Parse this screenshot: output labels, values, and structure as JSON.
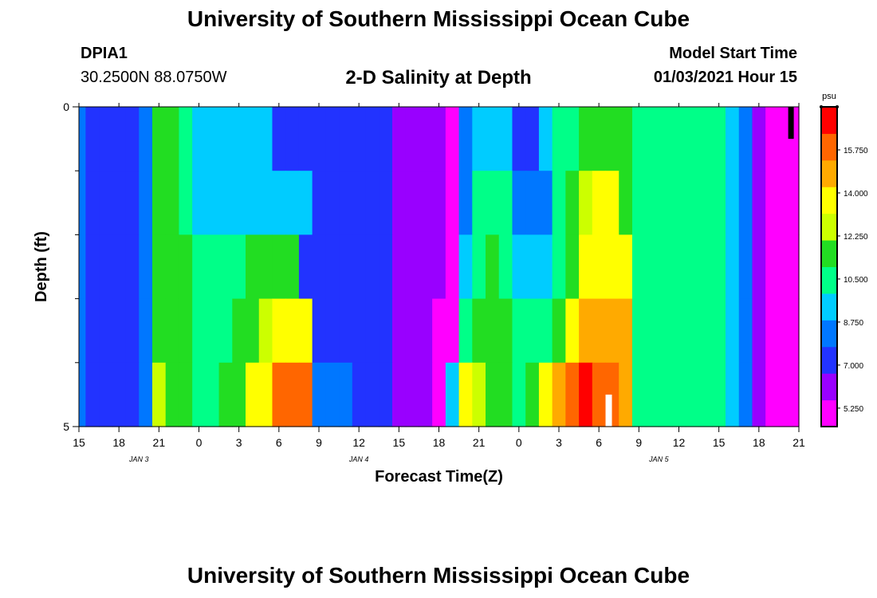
{
  "header": {
    "title": "University of Southern Mississippi Ocean Cube",
    "station_id": "DPIA1",
    "station_location": "30.2500N 88.0750W",
    "model_start_label": "Model Start Time",
    "model_start_value": "01/03/2021 Hour 15"
  },
  "footer": {
    "title": "University of Southern Mississippi Ocean Cube"
  },
  "colors": {
    "scale": [
      "#ff00ff",
      "#9900ff",
      "#2233ff",
      "#0077ff",
      "#00ccff",
      "#00ff88",
      "#22dd22",
      "#ccff00",
      "#ffff00",
      "#ffaa00",
      "#ff6600",
      "#ff0000"
    ]
  },
  "chart_data": {
    "type": "heatmap",
    "title": "2-D Salinity at Depth",
    "xlabel": "Forecast Time(Z)",
    "ylabel": "Depth (ft)",
    "ylim": [
      0,
      5
    ],
    "y_tick_labels": [
      "0",
      "5"
    ],
    "y_minor_ticks": [
      1,
      2,
      3,
      4
    ],
    "x_range_hours": [
      0,
      54
    ],
    "x_ticks": [
      {
        "hour": 0,
        "label": "15"
      },
      {
        "hour": 3,
        "label": "18"
      },
      {
        "hour": 6,
        "label": "21"
      },
      {
        "hour": 9,
        "label": "0"
      },
      {
        "hour": 12,
        "label": "3"
      },
      {
        "hour": 15,
        "label": "6"
      },
      {
        "hour": 18,
        "label": "9"
      },
      {
        "hour": 21,
        "label": "12"
      },
      {
        "hour": 24,
        "label": "15"
      },
      {
        "hour": 27,
        "label": "18"
      },
      {
        "hour": 30,
        "label": "21"
      },
      {
        "hour": 33,
        "label": "0"
      },
      {
        "hour": 36,
        "label": "3"
      },
      {
        "hour": 39,
        "label": "6"
      },
      {
        "hour": 42,
        "label": "9"
      },
      {
        "hour": 45,
        "label": "12"
      },
      {
        "hour": 48,
        "label": "15"
      },
      {
        "hour": 51,
        "label": "18"
      },
      {
        "hour": 54,
        "label": "21"
      }
    ],
    "date_labels": [
      {
        "hour": 4.5,
        "label": "JAN 3"
      },
      {
        "hour": 21,
        "label": "JAN 4"
      },
      {
        "hour": 43.5,
        "label": "JAN 5"
      }
    ],
    "colorbar": {
      "unit": "psu",
      "min": 4.5,
      "max": 17.5,
      "tick_values": [
        5.25,
        7.0,
        8.75,
        10.5,
        12.25,
        14.0,
        15.75
      ],
      "tick_labels": [
        "5.250",
        "7.000",
        "8.750",
        "10.500",
        "12.250",
        "14.000",
        "15.750"
      ]
    },
    "row_depths_ft": [
      0.5,
      1.5,
      2.5,
      3.5,
      4.5
    ],
    "hours": [
      0,
      1,
      2,
      3,
      4,
      5,
      6,
      7,
      8,
      9,
      10,
      11,
      12,
      13,
      14,
      15,
      16,
      17,
      18,
      19,
      20,
      21,
      22,
      23,
      24,
      25,
      26,
      27,
      28,
      29,
      30,
      31,
      32,
      33,
      34,
      35,
      36,
      37,
      38,
      39,
      40,
      41,
      42,
      43,
      44,
      45,
      46,
      47,
      48,
      49,
      50,
      51,
      52,
      53,
      54
    ],
    "salinity_psu": [
      [
        8.0,
        7.6,
        7.4,
        7.3,
        7.2,
        8.5,
        11.5,
        11.0,
        10.3,
        9.6,
        9.0,
        8.9,
        8.9,
        9.2,
        9.6,
        7.4,
        7.2,
        7.2,
        7.4,
        7.6,
        7.7,
        7.5,
        7.2,
        7.1,
        6.4,
        6.0,
        5.8,
        5.7,
        5.5,
        8.0,
        9.0,
        9.5,
        9.8,
        7.2,
        7.2,
        9.0,
        10.0,
        10.5,
        11.0,
        11.5,
        11.5,
        11.5,
        10.5,
        10.5,
        10.5,
        10.5,
        10.5,
        10.5,
        10.0,
        9.0,
        8.0,
        6.0,
        5.0,
        5.0,
        5.0
      ],
      [
        8.0,
        7.6,
        7.4,
        7.3,
        7.2,
        8.5,
        11.8,
        11.2,
        10.6,
        9.5,
        9.2,
        9.2,
        9.2,
        9.2,
        9.2,
        9.2,
        9.2,
        9.2,
        7.6,
        7.5,
        7.4,
        7.3,
        7.0,
        6.9,
        6.3,
        6.0,
        5.8,
        5.6,
        5.5,
        8.5,
        10.0,
        10.5,
        10.0,
        8.5,
        8.5,
        8.5,
        10.0,
        11.0,
        13.0,
        13.3,
        13.3,
        11.5,
        10.5,
        10.5,
        10.5,
        10.5,
        10.5,
        10.5,
        10.0,
        9.0,
        8.0,
        6.0,
        5.0,
        5.0,
        5.0
      ],
      [
        8.0,
        7.6,
        7.4,
        7.3,
        7.2,
        8.5,
        11.8,
        11.5,
        11.0,
        10.5,
        10.3,
        10.5,
        10.8,
        11.0,
        11.5,
        11.8,
        12.0,
        7.4,
        7.4,
        7.4,
        7.3,
        7.1,
        6.9,
        6.8,
        6.2,
        5.9,
        5.8,
        5.6,
        5.5,
        9.0,
        10.8,
        11.0,
        10.5,
        9.8,
        9.5,
        9.2,
        10.3,
        12.0,
        13.5,
        13.8,
        13.8,
        13.8,
        10.5,
        10.5,
        10.5,
        10.5,
        10.5,
        10.5,
        10.0,
        9.0,
        8.0,
        6.0,
        5.0,
        5.0,
        5.0
      ],
      [
        8.0,
        7.6,
        7.4,
        7.3,
        7.2,
        8.5,
        11.6,
        11.5,
        11.3,
        10.5,
        10.5,
        10.8,
        11.3,
        11.8,
        12.5,
        13.8,
        14.0,
        14.0,
        7.6,
        7.4,
        7.3,
        7.0,
        6.9,
        6.8,
        6.2,
        5.9,
        5.8,
        5.5,
        5.5,
        10.0,
        11.5,
        12.0,
        11.0,
        10.2,
        10.3,
        10.8,
        11.5,
        14.2,
        14.5,
        14.8,
        14.8,
        14.5,
        10.5,
        10.5,
        10.5,
        10.5,
        10.5,
        10.5,
        10.0,
        9.0,
        8.0,
        6.0,
        5.0,
        5.0,
        5.0
      ],
      [
        8.0,
        7.6,
        7.4,
        7.3,
        7.2,
        8.5,
        12.5,
        12.0,
        11.5,
        10.8,
        10.8,
        11.5,
        12.0,
        13.5,
        14.0,
        15.5,
        16.0,
        15.5,
        8.8,
        8.5,
        8.0,
        7.5,
        7.2,
        7.0,
        6.3,
        6.0,
        5.8,
        5.5,
        9.0,
        13.5,
        13.0,
        12.0,
        11.0,
        10.2,
        11.5,
        14.0,
        14.5,
        15.5,
        16.5,
        16.0,
        15.5,
        14.5,
        10.5,
        10.5,
        10.5,
        10.5,
        10.5,
        10.5,
        10.0,
        9.0,
        8.0,
        6.0,
        5.0,
        5.0,
        5.0
      ]
    ]
  }
}
